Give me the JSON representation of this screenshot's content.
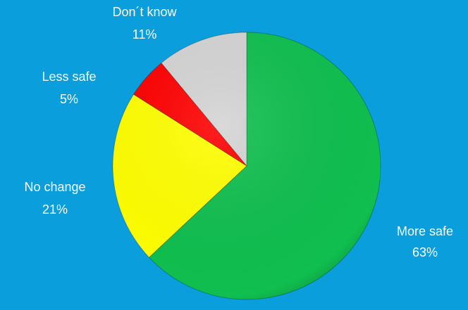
{
  "chart_data": {
    "type": "pie",
    "categories": [
      "More safe",
      "No change",
      "Less safe",
      "Don´t know"
    ],
    "values": [
      63,
      21,
      5,
      11
    ],
    "value_labels": [
      "63%",
      "21%",
      "5%",
      "11%"
    ],
    "colors": [
      "#10bf4f",
      "#ffff00",
      "#ff0000",
      "#d4d4d4"
    ]
  }
}
